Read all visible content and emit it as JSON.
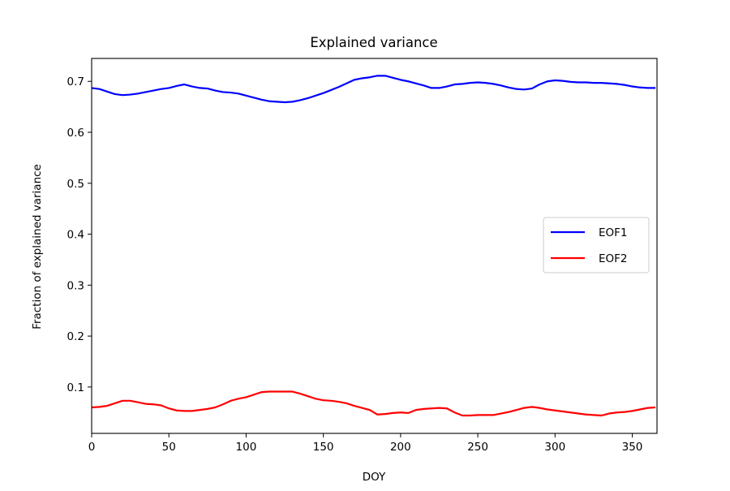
{
  "chart_data": {
    "type": "line",
    "title": "Explained variance",
    "xlabel": "DOY",
    "ylabel": "Fraction of explained variance",
    "xlim": [
      0,
      366
    ],
    "ylim": [
      0.009,
      0.745
    ],
    "xticks": [
      "0",
      "50",
      "100",
      "150",
      "200",
      "250",
      "300",
      "350"
    ],
    "yticks": [
      "0.1",
      "0.2",
      "0.3",
      "0.4",
      "0.5",
      "0.6",
      "0.7"
    ],
    "grid": false,
    "legend_position": "center-right",
    "x": [
      0,
      5,
      10,
      15,
      20,
      25,
      30,
      35,
      40,
      45,
      50,
      55,
      60,
      65,
      70,
      75,
      80,
      85,
      90,
      95,
      100,
      105,
      110,
      115,
      120,
      125,
      130,
      135,
      140,
      145,
      150,
      155,
      160,
      165,
      170,
      175,
      180,
      185,
      190,
      195,
      200,
      205,
      210,
      215,
      220,
      225,
      230,
      235,
      240,
      245,
      250,
      255,
      260,
      265,
      270,
      275,
      280,
      285,
      290,
      295,
      300,
      305,
      310,
      315,
      320,
      325,
      330,
      335,
      340,
      345,
      350,
      355,
      360,
      365
    ],
    "series": [
      {
        "name": "EOF1",
        "color": "#0000ff",
        "values": [
          0.687,
          0.685,
          0.68,
          0.675,
          0.673,
          0.674,
          0.676,
          0.679,
          0.682,
          0.685,
          0.687,
          0.691,
          0.694,
          0.69,
          0.687,
          0.686,
          0.682,
          0.679,
          0.678,
          0.676,
          0.672,
          0.668,
          0.664,
          0.661,
          0.66,
          0.659,
          0.66,
          0.663,
          0.667,
          0.672,
          0.677,
          0.683,
          0.689,
          0.696,
          0.703,
          0.706,
          0.708,
          0.711,
          0.711,
          0.707,
          0.703,
          0.7,
          0.696,
          0.692,
          0.687,
          0.687,
          0.69,
          0.694,
          0.695,
          0.697,
          0.698,
          0.697,
          0.695,
          0.692,
          0.688,
          0.685,
          0.684,
          0.686,
          0.694,
          0.7,
          0.702,
          0.701,
          0.699,
          0.698,
          0.698,
          0.697,
          0.697,
          0.696,
          0.695,
          0.693,
          0.69,
          0.688,
          0.687,
          0.687
        ]
      },
      {
        "name": "EOF2",
        "color": "#ff0000",
        "values": [
          0.06,
          0.061,
          0.063,
          0.068,
          0.073,
          0.073,
          0.07,
          0.067,
          0.066,
          0.064,
          0.058,
          0.054,
          0.053,
          0.053,
          0.055,
          0.057,
          0.06,
          0.066,
          0.073,
          0.077,
          0.08,
          0.085,
          0.09,
          0.091,
          0.091,
          0.091,
          0.091,
          0.087,
          0.082,
          0.077,
          0.074,
          0.073,
          0.071,
          0.068,
          0.063,
          0.059,
          0.055,
          0.046,
          0.047,
          0.049,
          0.05,
          0.049,
          0.055,
          0.057,
          0.058,
          0.059,
          0.058,
          0.05,
          0.044,
          0.044,
          0.045,
          0.045,
          0.045,
          0.048,
          0.051,
          0.055,
          0.059,
          0.061,
          0.059,
          0.056,
          0.054,
          0.052,
          0.05,
          0.048,
          0.046,
          0.045,
          0.044,
          0.048,
          0.05,
          0.051,
          0.053,
          0.056,
          0.059,
          0.06
        ]
      }
    ]
  }
}
